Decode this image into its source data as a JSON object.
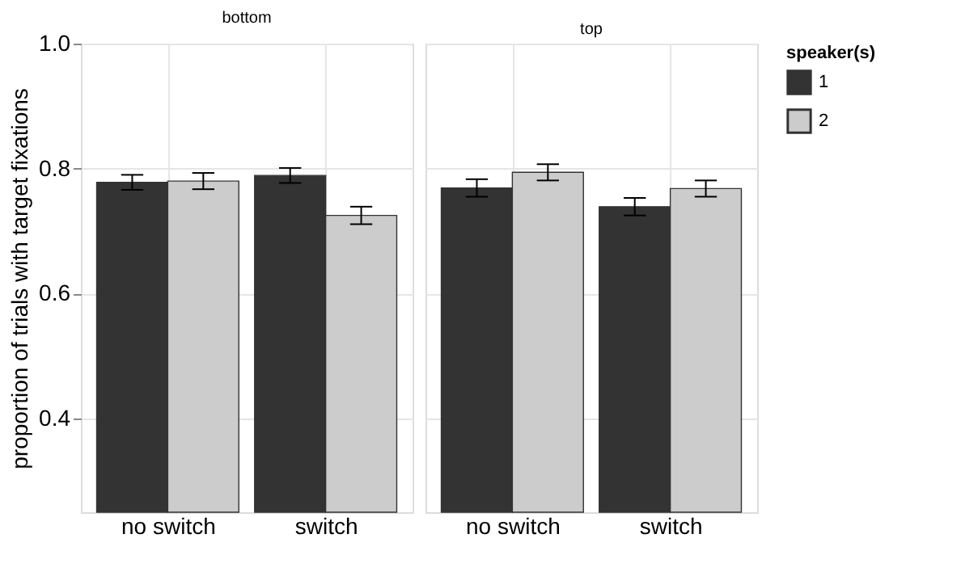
{
  "chart_data": [
    {
      "type": "bar",
      "title": "bottom",
      "ylabel": "proportion of trials with target fixations",
      "categories": [
        "no switch",
        "switch"
      ],
      "ylim": [
        0.25,
        1.0
      ],
      "yticks": [
        0.4,
        0.6,
        0.8,
        {
          "value": 1.0,
          "label": "1.0"
        }
      ],
      "grid": true,
      "legend": false,
      "series": [
        {
          "color": "#333333",
          "values": [
            0.778,
            0.789
          ],
          "errors": [
            0.012,
            0.012
          ]
        },
        {
          "color": "#cccccc",
          "values": [
            0.78,
            0.725
          ],
          "errors": [
            0.013,
            0.014
          ]
        }
      ]
    },
    {
      "type": "bar",
      "title": "top",
      "categories": [
        "no switch",
        "switch"
      ],
      "ylim": [
        0.25,
        1.0
      ],
      "yticks": [
        0.4,
        0.6,
        0.8,
        1.0
      ],
      "grid": true,
      "legend": "right",
      "legend_title": "speaker(s)",
      "tick_labels": "x",
      "series": [
        {
          "name": "1",
          "color": "#333333",
          "values": [
            0.769,
            0.739
          ],
          "errors": [
            0.014,
            0.014
          ]
        },
        {
          "name": "2",
          "color": "#cccccc",
          "values": [
            0.794,
            0.768
          ],
          "errors": [
            0.013,
            0.013
          ]
        }
      ]
    }
  ]
}
